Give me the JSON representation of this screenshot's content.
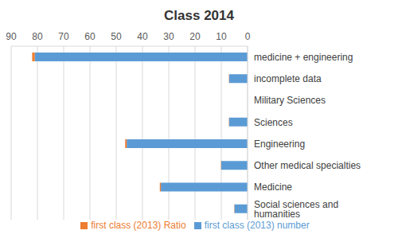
{
  "chart_data": {
    "type": "bar",
    "title": "Class 2014",
    "orientation": "horizontal",
    "stacked": true,
    "grid": true,
    "legend": "bottom",
    "categories": [
      "medicine + engineering",
      "incomplete data",
      "Military Sciences",
      "Sciences",
      "Engineering",
      "Other medical specialties",
      "Medicine",
      "Social sciences and humanities"
    ],
    "series": [
      {
        "name": "first class (2013) number",
        "color": "#5b9bd5",
        "values": [
          81,
          7,
          0,
          7,
          46,
          10,
          33,
          5
        ]
      },
      {
        "name": "first class (2013) Ratio",
        "color": "#ed7d31",
        "values": [
          1,
          0.1,
          0,
          0.1,
          0.6,
          0.1,
          0.4,
          0.1
        ]
      }
    ],
    "xlim": [
      0,
      90
    ],
    "xticks": [
      0,
      10,
      20,
      30,
      40,
      50,
      60,
      70,
      80,
      90
    ]
  }
}
